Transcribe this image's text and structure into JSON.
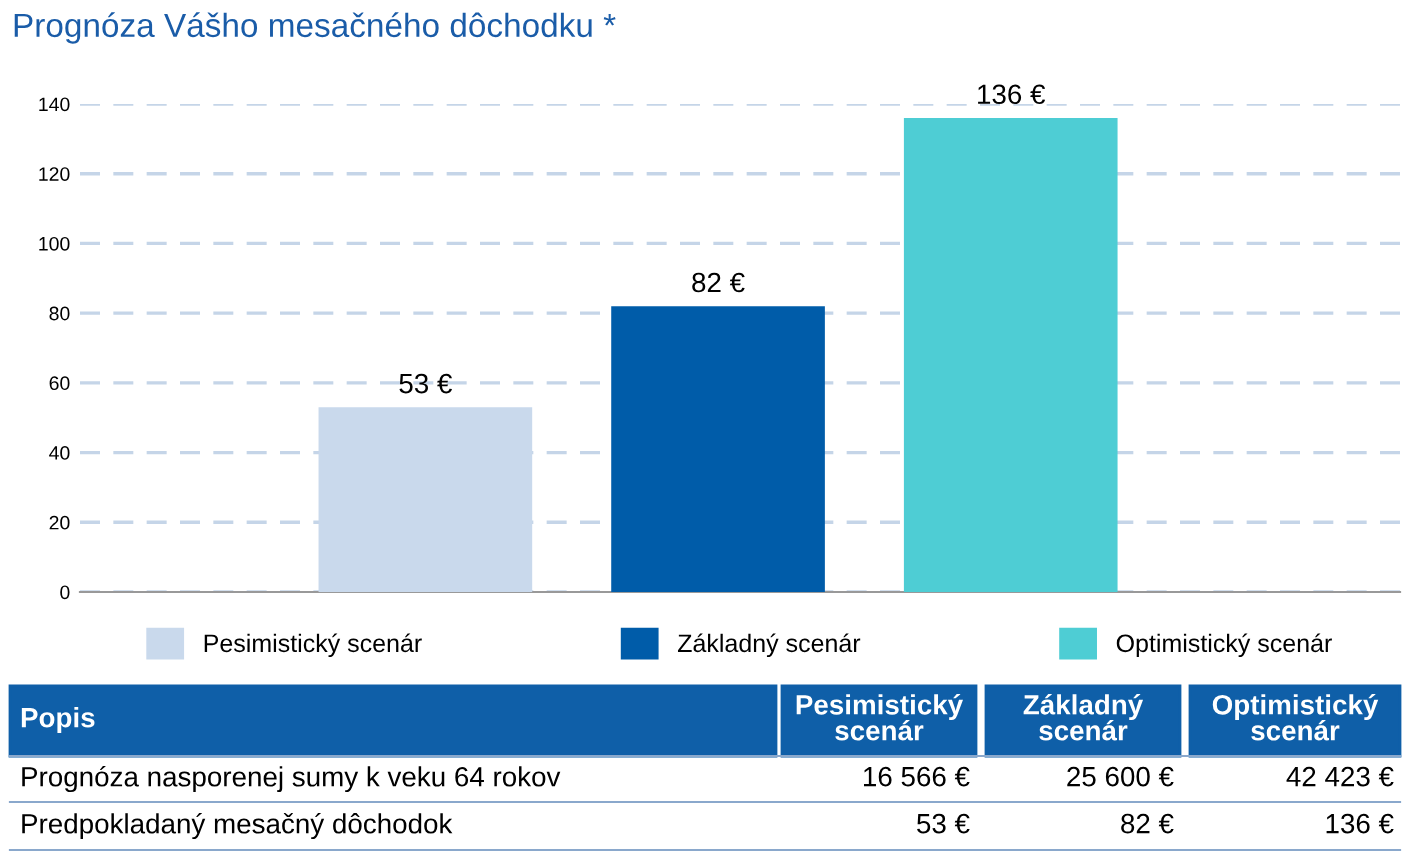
{
  "chart_data": {
    "type": "bar",
    "title": "Prognóza Vášho mesačného dôchodku *",
    "categories": [
      null,
      null,
      null
    ],
    "series": [
      {
        "name": "Pesimistický scenár",
        "color": "#c9d9ec",
        "values": [
          53,
          null,
          null
        ],
        "value_labels": [
          "53 €",
          null,
          null
        ]
      },
      {
        "name": "Základný scenár",
        "color": "#005ca9",
        "values": [
          null,
          82,
          null
        ],
        "value_labels": [
          null,
          "82 €",
          null
        ]
      },
      {
        "name": "Optimistický scenár",
        "color": "#4ecdd4",
        "values": [
          null,
          null,
          136
        ],
        "value_labels": [
          null,
          null,
          "136 €"
        ]
      }
    ],
    "ylim": [
      0,
      140
    ],
    "yticks": [
      0,
      20,
      40,
      60,
      80,
      100,
      120,
      140
    ],
    "grid": "y",
    "legend": "bottom",
    "annotations": [
      "Popis",
      "Prognóza nasporenej sumy k veku 64 rokov",
      "16 566 €",
      "25 600 €",
      "42 423 €",
      "Predpokladaný mesačný dôchodok"
    ]
  }
}
